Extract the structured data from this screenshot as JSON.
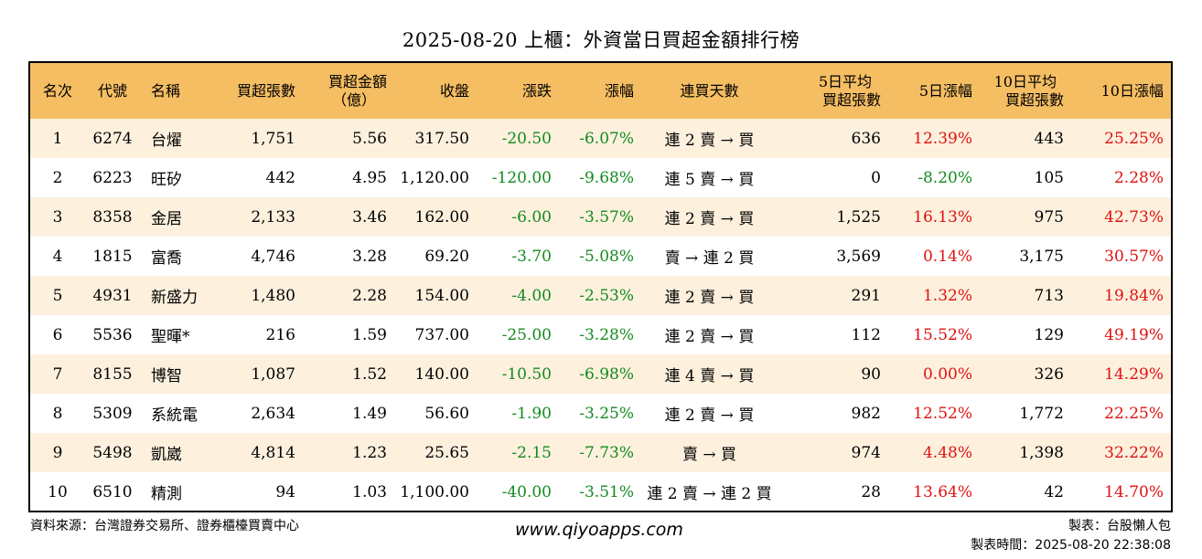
{
  "title": "2025-08-20 上櫃：外資當日買超金額排行榜",
  "colors": {
    "header_bg": "#f5be63",
    "row_alt": "#fdf1de",
    "negative": "#138a1f",
    "positive": "#e01010"
  },
  "headers": {
    "rank": "名次",
    "code": "代號",
    "name": "名稱",
    "buy_lots": "買超張數",
    "buy_amount_1": "買超金額",
    "buy_amount_2": "（億）",
    "close": "收盤",
    "change": "漲跌",
    "change_pct": "漲幅",
    "streak": "連買天數",
    "avg5_1": "5日平均",
    "avg5_2": "買超張數",
    "pct5": "5日漲幅",
    "avg10_1": "10日平均",
    "avg10_2": "買超張數",
    "pct10": "10日漲幅"
  },
  "rows": [
    {
      "rank": "1",
      "code": "6274",
      "name": "台燿",
      "lots": "1,751",
      "amount": "5.56",
      "close": "317.50",
      "change": "-20.50",
      "change_pct": "-6.07%",
      "streak": "連 2 賣 → 買",
      "avg5": "636",
      "pct5": "12.39%",
      "avg10": "443",
      "pct10": "25.25%"
    },
    {
      "rank": "2",
      "code": "6223",
      "name": "旺矽",
      "lots": "442",
      "amount": "4.95",
      "close": "1,120.00",
      "change": "-120.00",
      "change_pct": "-9.68%",
      "streak": "連 5 賣 → 買",
      "avg5": "0",
      "pct5": "-8.20%",
      "avg10": "105",
      "pct10": "2.28%"
    },
    {
      "rank": "3",
      "code": "8358",
      "name": "金居",
      "lots": "2,133",
      "amount": "3.46",
      "close": "162.00",
      "change": "-6.00",
      "change_pct": "-3.57%",
      "streak": "連 2 賣 → 買",
      "avg5": "1,525",
      "pct5": "16.13%",
      "avg10": "975",
      "pct10": "42.73%"
    },
    {
      "rank": "4",
      "code": "1815",
      "name": "富喬",
      "lots": "4,746",
      "amount": "3.28",
      "close": "69.20",
      "change": "-3.70",
      "change_pct": "-5.08%",
      "streak": "賣 → 連 2 買",
      "avg5": "3,569",
      "pct5": "0.14%",
      "avg10": "3,175",
      "pct10": "30.57%"
    },
    {
      "rank": "5",
      "code": "4931",
      "name": "新盛力",
      "lots": "1,480",
      "amount": "2.28",
      "close": "154.00",
      "change": "-4.00",
      "change_pct": "-2.53%",
      "streak": "連 2 賣 → 買",
      "avg5": "291",
      "pct5": "1.32%",
      "avg10": "713",
      "pct10": "19.84%"
    },
    {
      "rank": "6",
      "code": "5536",
      "name": "聖暉*",
      "lots": "216",
      "amount": "1.59",
      "close": "737.00",
      "change": "-25.00",
      "change_pct": "-3.28%",
      "streak": "連 2 賣 → 買",
      "avg5": "112",
      "pct5": "15.52%",
      "avg10": "129",
      "pct10": "49.19%"
    },
    {
      "rank": "7",
      "code": "8155",
      "name": "博智",
      "lots": "1,087",
      "amount": "1.52",
      "close": "140.00",
      "change": "-10.50",
      "change_pct": "-6.98%",
      "streak": "連 4 賣 → 買",
      "avg5": "90",
      "pct5": "0.00%",
      "avg10": "326",
      "pct10": "14.29%"
    },
    {
      "rank": "8",
      "code": "5309",
      "name": "系統電",
      "lots": "2,634",
      "amount": "1.49",
      "close": "56.60",
      "change": "-1.90",
      "change_pct": "-3.25%",
      "streak": "連 2 賣 → 買",
      "avg5": "982",
      "pct5": "12.52%",
      "avg10": "1,772",
      "pct10": "22.25%"
    },
    {
      "rank": "9",
      "code": "5498",
      "name": "凱崴",
      "lots": "4,814",
      "amount": "1.23",
      "close": "25.65",
      "change": "-2.15",
      "change_pct": "-7.73%",
      "streak": "賣 → 買",
      "avg5": "974",
      "pct5": "4.48%",
      "avg10": "1,398",
      "pct10": "32.22%"
    },
    {
      "rank": "10",
      "code": "6510",
      "name": "精測",
      "lots": "94",
      "amount": "1.03",
      "close": "1,100.00",
      "change": "-40.00",
      "change_pct": "-3.51%",
      "streak": "連 2 賣 → 連 2 買",
      "avg5": "28",
      "pct5": "13.64%",
      "avg10": "42",
      "pct10": "14.70%"
    }
  ],
  "footer": {
    "source": "資料來源：台灣證券交易所、證券櫃檯買賣中心",
    "website": "www.qiyoapps.com",
    "maker": "製表：台股懶人包",
    "made_time": "製表時間：2025-08-20 22:38:08"
  }
}
